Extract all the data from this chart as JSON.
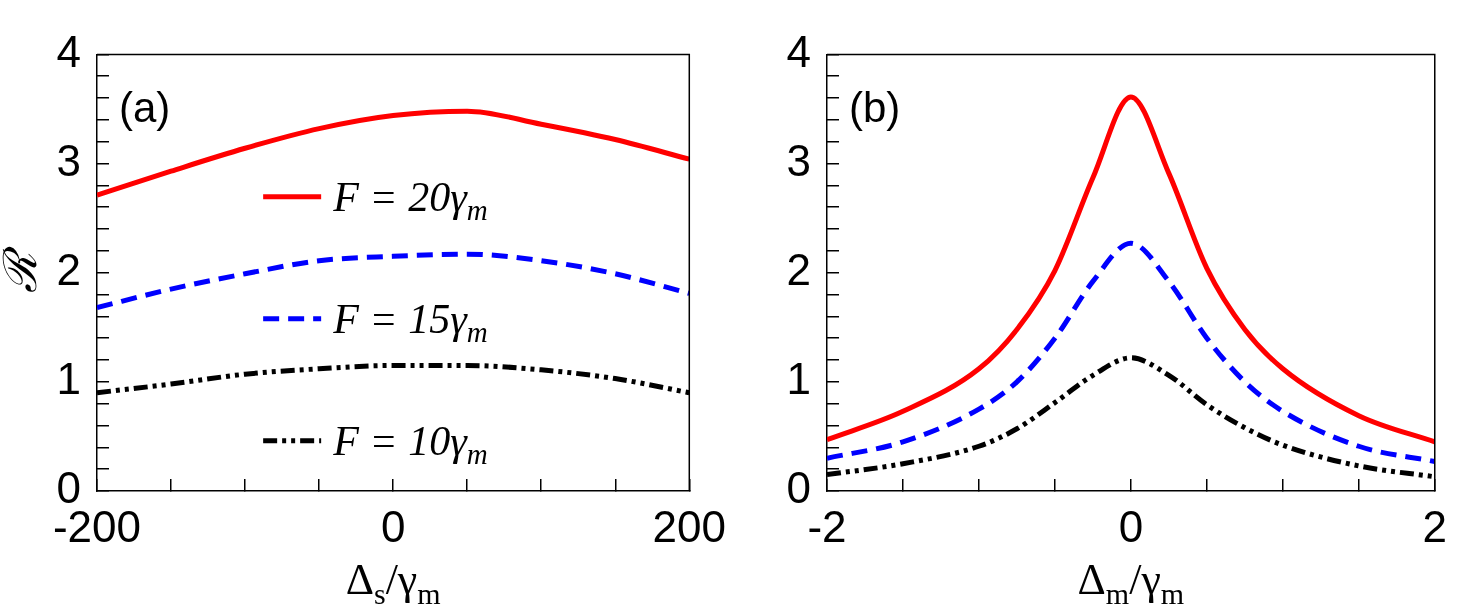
{
  "chart_data": [
    {
      "type": "line",
      "ylabel": "ℛ",
      "xlabel": "Δ$_{s}$/γ$_{m}$",
      "annotations": [
        "(a)"
      ],
      "legend": "center",
      "grid": false,
      "xlim": [
        -200,
        200
      ],
      "ylim": [
        0,
        4
      ],
      "xticks": [
        -200,
        {
          "value": -150,
          "label": null
        },
        {
          "value": -100,
          "label": null
        },
        {
          "value": -50,
          "label": null
        },
        0,
        {
          "value": 50,
          "label": null
        },
        {
          "value": 100,
          "label": null
        },
        {
          "value": 150,
          "label": null
        },
        200
      ],
      "yticks": [
        0,
        {
          "value": 0.2,
          "label": null
        },
        {
          "value": 0.4,
          "label": null
        },
        {
          "value": 0.6,
          "label": null
        },
        {
          "value": 0.8,
          "label": null
        },
        1,
        {
          "value": 1.2,
          "label": null
        },
        {
          "value": 1.4,
          "label": null
        },
        {
          "value": 1.6,
          "label": null
        },
        {
          "value": 1.8,
          "label": null
        },
        2,
        {
          "value": 2.2,
          "label": null
        },
        {
          "value": 2.4,
          "label": null
        },
        {
          "value": 2.6,
          "label": null
        },
        {
          "value": 2.8,
          "label": null
        },
        3,
        {
          "value": 3.2,
          "label": null
        },
        {
          "value": 3.4,
          "label": null
        },
        {
          "value": 3.6,
          "label": null
        },
        {
          "value": 3.8,
          "label": null
        },
        4
      ],
      "x": [
        -200,
        -150,
        -100,
        -50,
        0,
        50,
        100,
        150,
        200
      ],
      "series": [
        {
          "name": "F = 20γ$_{m}$",
          "color": "#ff0000",
          "line_style": "solid",
          "values": [
            2.71,
            2.93,
            3.14,
            3.32,
            3.44,
            3.48,
            3.36,
            3.22,
            3.04
          ]
        },
        {
          "name": "F = 15γ$_{m}$",
          "color": "#0000ff",
          "line_style": "dashed",
          "values": [
            1.68,
            1.85,
            1.99,
            2.11,
            2.15,
            2.17,
            2.11,
            1.99,
            1.81
          ]
        },
        {
          "name": "F = 10γ$_{m}$",
          "color": "#000000",
          "line_style": "dashdot",
          "values": [
            0.9,
            0.98,
            1.07,
            1.12,
            1.15,
            1.15,
            1.11,
            1.03,
            0.9
          ]
        }
      ]
    },
    {
      "type": "line",
      "xlabel": "Δ$_{m}$/γ$_{m}$",
      "annotations": [
        "(b)"
      ],
      "legend": false,
      "grid": false,
      "xlim": [
        -2,
        2
      ],
      "ylim": [
        0,
        4
      ],
      "xticks": [
        -2,
        {
          "value": -1.5,
          "label": null
        },
        {
          "value": -1,
          "label": null
        },
        {
          "value": -0.5,
          "label": null
        },
        0,
        {
          "value": 0.5,
          "label": null
        },
        {
          "value": 1,
          "label": null
        },
        {
          "value": 1.5,
          "label": null
        },
        2
      ],
      "yticks": [
        0,
        {
          "value": 0.2,
          "label": null
        },
        {
          "value": 0.4,
          "label": null
        },
        {
          "value": 0.6,
          "label": null
        },
        {
          "value": 0.8,
          "label": null
        },
        1,
        {
          "value": 1.2,
          "label": null
        },
        {
          "value": 1.4,
          "label": null
        },
        {
          "value": 1.6,
          "label": null
        },
        {
          "value": 1.8,
          "label": null
        },
        2,
        {
          "value": 2.2,
          "label": null
        },
        {
          "value": 2.4,
          "label": null
        },
        {
          "value": 2.6,
          "label": null
        },
        {
          "value": 2.8,
          "label": null
        },
        3,
        {
          "value": 3.2,
          "label": null
        },
        {
          "value": 3.4,
          "label": null
        },
        {
          "value": 3.6,
          "label": null
        },
        {
          "value": 3.8,
          "label": null
        },
        4
      ],
      "x": [
        -2,
        -1.5,
        -1,
        -0.75,
        -0.5,
        -0.25,
        0,
        0.25,
        0.5,
        0.75,
        1,
        1.5,
        2
      ],
      "series": [
        {
          "color": "#ff0000",
          "line_style": "solid",
          "values": [
            0.47,
            0.73,
            1.12,
            1.48,
            2.02,
            2.87,
            3.61,
            2.91,
            2.04,
            1.48,
            1.12,
            0.69,
            0.45
          ]
        },
        {
          "color": "#0000ff",
          "line_style": "dashed",
          "values": [
            0.3,
            0.45,
            0.75,
            1.0,
            1.4,
            1.92,
            2.27,
            1.92,
            1.4,
            1.0,
            0.73,
            0.41,
            0.27
          ]
        },
        {
          "color": "#000000",
          "line_style": "dashdot",
          "values": [
            0.15,
            0.25,
            0.41,
            0.57,
            0.81,
            1.06,
            1.22,
            1.06,
            0.79,
            0.58,
            0.42,
            0.23,
            0.13
          ]
        }
      ]
    }
  ]
}
